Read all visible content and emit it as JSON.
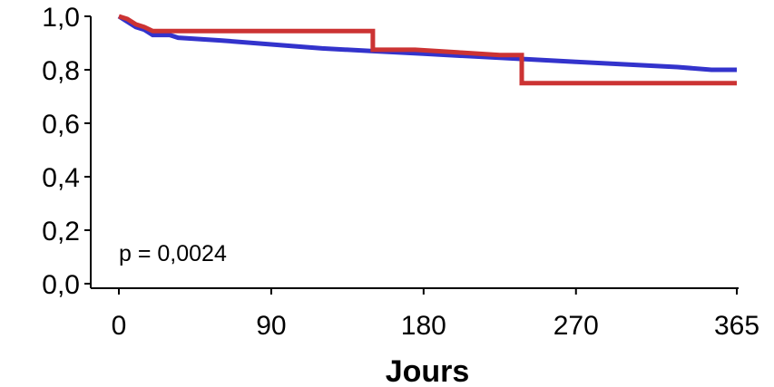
{
  "chart_data": {
    "type": "line",
    "title": "",
    "xlabel": "Jours",
    "ylabel": "",
    "xlim": [
      0,
      365
    ],
    "ylim": [
      0,
      1.0
    ],
    "x_ticks": [
      0,
      90,
      180,
      270,
      365
    ],
    "x_tick_labels": [
      "0",
      "90",
      "180",
      "270",
      "365"
    ],
    "y_ticks": [
      0,
      0.2,
      0.4,
      0.6,
      0.8,
      1.0
    ],
    "y_tick_labels": [
      "0,0",
      "0,2",
      "0,4",
      "0,6",
      "0,8",
      "1,0"
    ],
    "grid": false,
    "legend": "none",
    "annotation": "p = 0,0024",
    "series": [
      {
        "color": "#3333cc",
        "step": false,
        "points": [
          [
            0,
            1.0
          ],
          [
            5,
            0.98
          ],
          [
            10,
            0.96
          ],
          [
            15,
            0.95
          ],
          [
            20,
            0.93
          ],
          [
            30,
            0.93
          ],
          [
            35,
            0.92
          ],
          [
            60,
            0.91
          ],
          [
            90,
            0.895
          ],
          [
            120,
            0.88
          ],
          [
            150,
            0.87
          ],
          [
            180,
            0.86
          ],
          [
            210,
            0.85
          ],
          [
            240,
            0.84
          ],
          [
            270,
            0.83
          ],
          [
            300,
            0.82
          ],
          [
            330,
            0.81
          ],
          [
            350,
            0.8
          ],
          [
            365,
            0.8
          ]
        ]
      },
      {
        "color": "#cc3333",
        "step": true,
        "points": [
          [
            0,
            1.0
          ],
          [
            5,
            0.99
          ],
          [
            10,
            0.97
          ],
          [
            15,
            0.96
          ],
          [
            20,
            0.945
          ],
          [
            150,
            0.945
          ],
          [
            150,
            0.875
          ],
          [
            175,
            0.875
          ],
          [
            200,
            0.865
          ],
          [
            225,
            0.855
          ],
          [
            238,
            0.855
          ],
          [
            238,
            0.75
          ],
          [
            365,
            0.75
          ]
        ]
      }
    ]
  }
}
